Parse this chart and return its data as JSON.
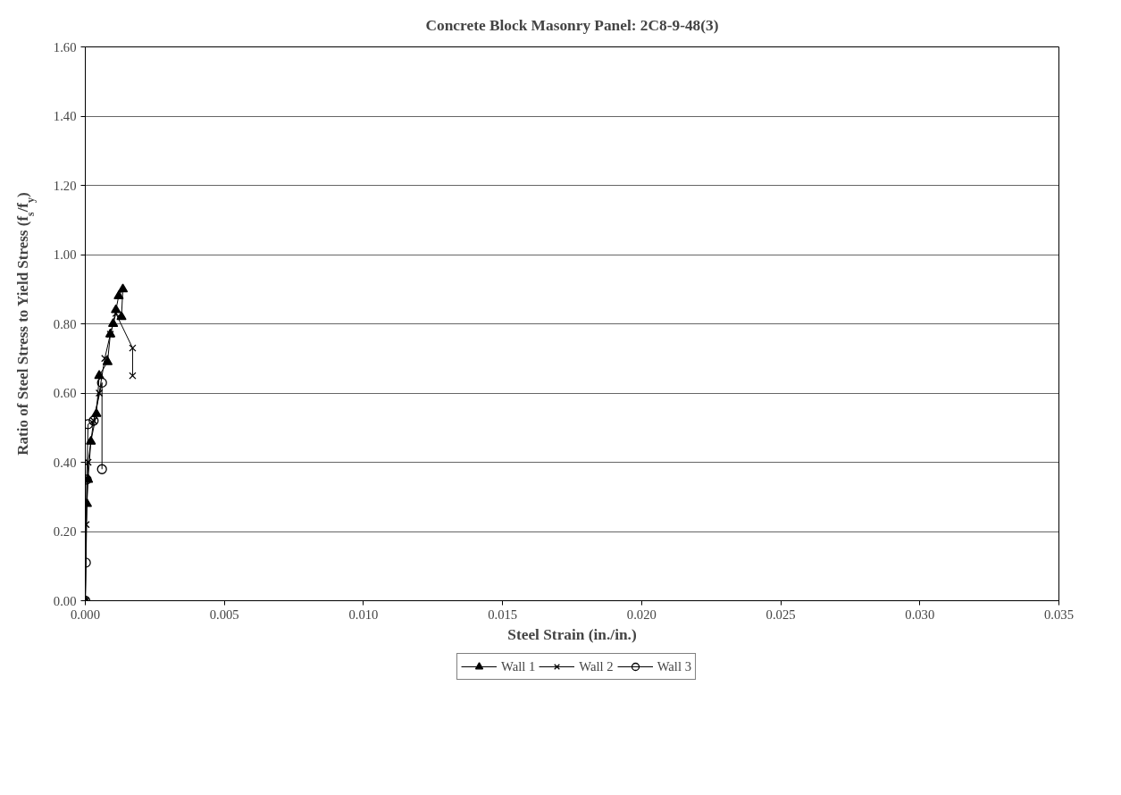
{
  "chart_data": {
    "type": "line",
    "title": "Concrete Block Masonry Panel: 2C8-9-48(3)",
    "xlabel": "Steel Strain (in./in.)",
    "ylabel": "Ratio of Steel Stress to Yield Stress (f$_{s}$/f$_{y}$)",
    "xlim": [
      0,
      0.035
    ],
    "xticks": [
      {
        "value": 0,
        "label": "0.000"
      },
      {
        "value": 0.005,
        "label": "0.005"
      },
      {
        "value": 0.01,
        "label": "0.010"
      },
      {
        "value": 0.015,
        "label": "0.015"
      },
      {
        "value": 0.02,
        "label": "0.020"
      },
      {
        "value": 0.025,
        "label": "0.025"
      },
      {
        "value": 0.03,
        "label": "0.030"
      },
      {
        "value": 0.035,
        "label": "0.035"
      }
    ],
    "ylim": [
      0,
      1.6
    ],
    "yticks": [
      {
        "value": 0,
        "label": "0.00"
      },
      {
        "value": 0.2,
        "label": "0.20"
      },
      {
        "value": 0.4,
        "label": "0.40"
      },
      {
        "value": 0.6,
        "label": "0.60"
      },
      {
        "value": 0.8,
        "label": "0.80"
      },
      {
        "value": 1.0,
        "label": "1.00"
      },
      {
        "value": 1.2,
        "label": "1.20"
      },
      {
        "value": 1.4,
        "label": "1.40"
      },
      {
        "value": 1.6,
        "label": "1.60"
      }
    ],
    "grid": "y",
    "legend": "bottom",
    "series": [
      {
        "name": "Wall 1",
        "color": "#000000",
        "marker": "triangle",
        "x": [
          0,
          6e-05,
          0.0001,
          0.0002,
          0.0004,
          0.0005,
          0.0008,
          0.0009,
          0.001,
          0.0011,
          0.0012,
          0.00135,
          0.0013
        ],
        "values": [
          0,
          0.28,
          0.35,
          0.46,
          0.54,
          0.65,
          0.69,
          0.77,
          0.8,
          0.84,
          0.88,
          0.9,
          0.82
        ]
      },
      {
        "name": "Wall 2",
        "color": "#000000",
        "marker": "cross",
        "x": [
          0,
          3e-05,
          0.0001,
          0.0003,
          0.0005,
          0.0007,
          0.0009,
          0.0011,
          0.0017,
          0.0017
        ],
        "values": [
          0,
          0.22,
          0.4,
          0.52,
          0.6,
          0.7,
          0.77,
          0.83,
          0.73,
          0.65
        ]
      },
      {
        "name": "Wall 3",
        "color": "#000000",
        "marker": "circle",
        "x": [
          0,
          2e-05,
          5e-05,
          0.0001,
          0.0003,
          0.0006,
          0.0006
        ],
        "values": [
          0,
          0.11,
          0.35,
          0.51,
          0.52,
          0.63,
          0.38
        ]
      }
    ]
  }
}
